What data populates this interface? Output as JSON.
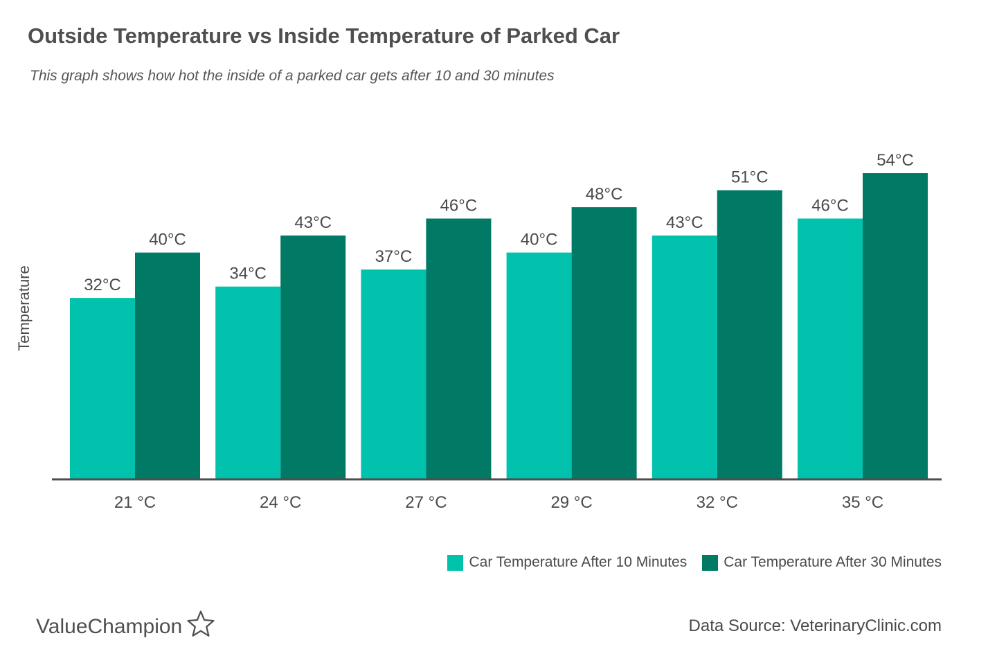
{
  "header": {
    "title": "Outside Temperature vs Inside Temperature of Parked Car",
    "subtitle": "This graph shows how hot the inside of a parked car gets after 10 and 30 minutes"
  },
  "legend": {
    "series1_label": "Car Temperature After 10 Minutes",
    "series2_label": "Car Temperature After 30 Minutes"
  },
  "footer": {
    "brand": "ValueChampion",
    "brand_icon": "star-outline-icon",
    "source": "Data Source: VeterinaryClinic.com"
  },
  "colors": {
    "series1": "#00c2ad",
    "series2": "#007a65",
    "axis": "#4d4d4d",
    "text": "#4a4a4a"
  },
  "chart_data": {
    "type": "bar",
    "title": "Outside Temperature vs Inside Temperature of Parked Car",
    "subtitle": "This graph shows how hot the inside of a parked car gets after 10 and 30 minutes",
    "xlabel": "",
    "ylabel": "Temperature",
    "categories": [
      "21 °C",
      "24 °C",
      "27 °C",
      "29 °C",
      "32 °C",
      "35 °C"
    ],
    "series": [
      {
        "name": "Car Temperature After 10 Minutes",
        "values": [
          32,
          34,
          37,
          40,
          43,
          46
        ],
        "labels": [
          "32°C",
          "34°C",
          "37°C",
          "40°C",
          "43°C",
          "46°C"
        ],
        "color": "#00c2ad"
      },
      {
        "name": "Car Temperature After 30 Minutes",
        "values": [
          40,
          43,
          46,
          48,
          51,
          54
        ],
        "labels": [
          "40°C",
          "43°C",
          "46°C",
          "48°C",
          "51°C",
          "54°C"
        ],
        "color": "#007a65"
      }
    ],
    "ylim": [
      0,
      54
    ],
    "grid": false,
    "legend": "bottom-right",
    "y_axis_ticks": false
  }
}
